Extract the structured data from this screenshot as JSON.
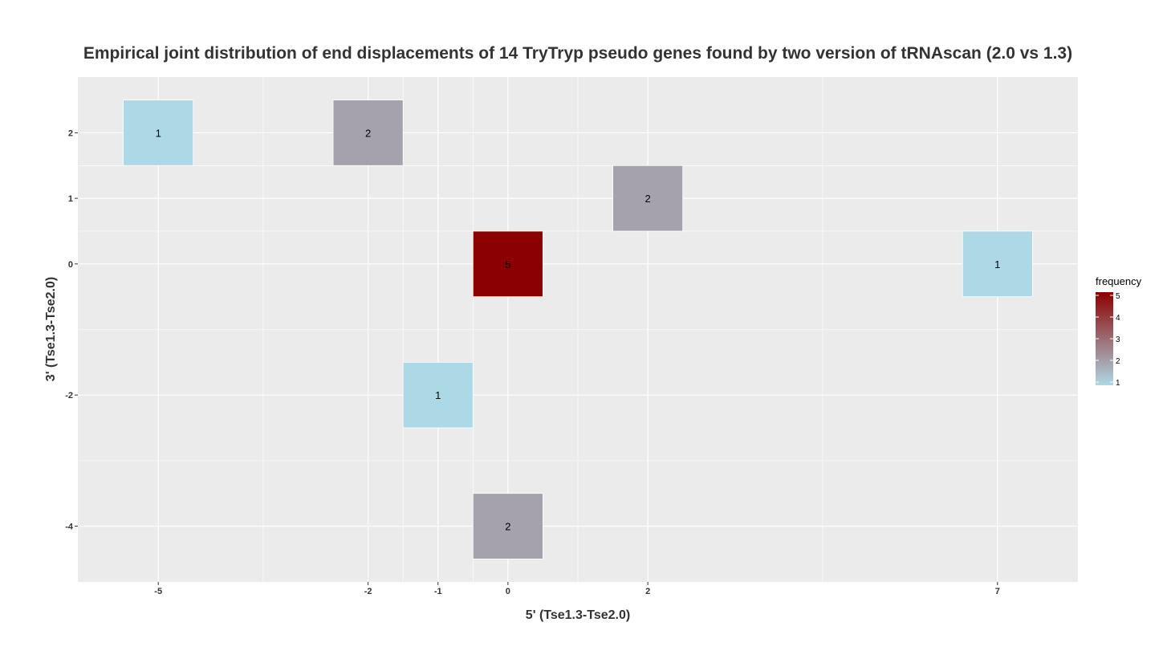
{
  "chart_data": {
    "type": "heatmap",
    "title": "Empirical joint distribution of end displacements of 14 TryTryp pseudo genes found by two version of tRNAscan (2.0 vs 1.3)",
    "xlabel": "5' (Tse1.3-Tse2.0)",
    "ylabel": "3' (Tse1.3-Tse2.0)",
    "x_ticks": [
      -5,
      -2,
      -1,
      0,
      2,
      7
    ],
    "y_ticks": [
      2,
      1,
      0,
      -2,
      -4
    ],
    "x_tick_labels": [
      "-5",
      "-2",
      "-1",
      "0",
      "2",
      "7"
    ],
    "y_tick_labels": [
      "2",
      "1",
      "0",
      "-2",
      "-4"
    ],
    "xlim": [
      -6.15,
      8.15
    ],
    "ylim": [
      -4.85,
      2.85
    ],
    "grid": true,
    "cells": [
      {
        "x": -5,
        "y": 2,
        "value": 1,
        "label": "1"
      },
      {
        "x": -2,
        "y": 2,
        "value": 2,
        "label": "2"
      },
      {
        "x": 2,
        "y": 1,
        "value": 2,
        "label": "2"
      },
      {
        "x": 0,
        "y": 0,
        "value": 5,
        "label": "5"
      },
      {
        "x": 7,
        "y": 0,
        "value": 1,
        "label": "1"
      },
      {
        "x": -1,
        "y": -2,
        "value": 1,
        "label": "1"
      },
      {
        "x": 0,
        "y": -4,
        "value": 2,
        "label": "2"
      }
    ],
    "legend": {
      "title": "frequency",
      "position": "right",
      "ticks": [
        5,
        4,
        3,
        2,
        1
      ],
      "tick_labels": [
        "5",
        "4",
        "3",
        "2",
        "1"
      ],
      "min": 1,
      "max": 5,
      "low_color": "#add8e6",
      "high_color": "#8b0000"
    },
    "colors": {
      "panel_background": "#ebebeb",
      "grid_line": "#ffffff",
      "cell_border": "#ffffff"
    }
  }
}
